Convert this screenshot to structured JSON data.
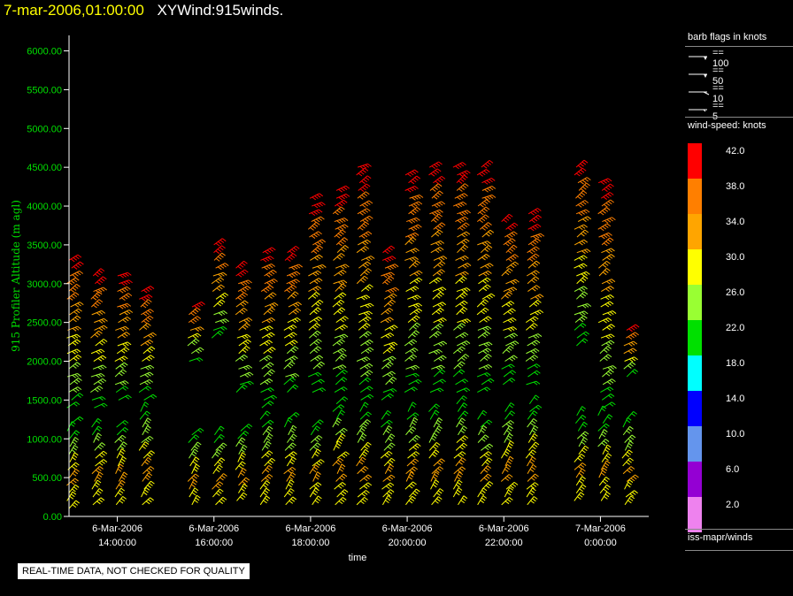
{
  "title": {
    "datetime": "7-mar-2006,01:00:00",
    "name": "XYWind:915winds."
  },
  "quality_note": "REAL-TIME DATA, NOT CHECKED FOR QUALITY",
  "legend": {
    "barb_title": "barb flags in knots",
    "barbs": [
      {
        "label": "== 100",
        "icon": "pennant-barb-icon"
      },
      {
        "label": "== 50",
        "icon": "pennant-barb-icon"
      },
      {
        "label": "== 10",
        "icon": "full-barb-icon"
      },
      {
        "label": "== 5",
        "icon": "half-barb-icon"
      }
    ],
    "colorbar_title": "wind-speed: knots",
    "colorbar": [
      {
        "label": "42.0",
        "color": "#ff0000"
      },
      {
        "label": "38.0",
        "color": "#ff7f00"
      },
      {
        "label": "34.0",
        "color": "#ffa500"
      },
      {
        "label": "30.0",
        "color": "#ffff00"
      },
      {
        "label": "26.0",
        "color": "#99ff33"
      },
      {
        "label": "22.0",
        "color": "#00e000"
      },
      {
        "label": "18.0",
        "color": "#00ffff"
      },
      {
        "label": "14.0",
        "color": "#0000ff"
      },
      {
        "label": "10.0",
        "color": "#6495ed"
      },
      {
        "label": "6.0",
        "color": "#9400d3"
      },
      {
        "label": "2.0",
        "color": "#ee82ee"
      }
    ],
    "source": "iss-mapr/winds"
  },
  "chart_data": {
    "type": "scatter",
    "subtype": "wind-barb time-height profile",
    "title": "XYWind:915winds.",
    "xlabel": "time",
    "ylabel": "915 Profiler Altitude (m agl)",
    "ylim": [
      0,
      6200
    ],
    "yticks": [
      0,
      500,
      1000,
      1500,
      2000,
      2500,
      3000,
      3500,
      4000,
      4500,
      5000,
      5500,
      6000
    ],
    "ytick_labels": [
      "0.00",
      "500.00",
      "1000.00",
      "1500.00",
      "2000.00",
      "2500.00",
      "3000.00",
      "3500.00",
      "4000.00",
      "4500.00",
      "5000.00",
      "5500.00",
      "6000.00"
    ],
    "xlim": [
      "2006-03-06T13:00",
      "2006-03-07T01:00"
    ],
    "xticks": [
      {
        "time": "2006-03-06T14:00",
        "date": "6-Mar-2006",
        "clock": "14:00:00"
      },
      {
        "time": "2006-03-06T16:00",
        "date": "6-Mar-2006",
        "clock": "16:00:00"
      },
      {
        "time": "2006-03-06T18:00",
        "date": "6-Mar-2006",
        "clock": "18:00:00"
      },
      {
        "time": "2006-03-06T20:00",
        "date": "6-Mar-2006",
        "clock": "20:00:00"
      },
      {
        "time": "2006-03-06T22:00",
        "date": "6-Mar-2006",
        "clock": "22:00:00"
      },
      {
        "time": "2006-03-07T00:00",
        "date": "7-Mar-2006",
        "clock": "0:00:00"
      }
    ],
    "profiles": [
      {
        "time": "2006-03-06T13:00",
        "low": [
          100,
          1200
        ],
        "high": [
          1400,
          3300
        ]
      },
      {
        "time": "2006-03-06T13:30",
        "low": [
          150,
          1200
        ],
        "high": [
          1400,
          3150
        ]
      },
      {
        "time": "2006-03-06T14:00",
        "low": [
          150,
          1150
        ],
        "high": [
          1500,
          3100
        ]
      },
      {
        "time": "2006-03-06T14:30",
        "low": [
          150,
          1400
        ],
        "high": [
          1500,
          2900
        ]
      },
      {
        "time": "2006-03-06T15:30",
        "low": [
          150,
          1100
        ],
        "high": [
          2000,
          2700
        ]
      },
      {
        "time": "2006-03-06T16:00",
        "low": [
          150,
          1050
        ],
        "high": [
          2300,
          3500
        ]
      },
      {
        "time": "2006-03-06T16:30",
        "low": [
          200,
          1100
        ],
        "high": [
          1600,
          3200
        ]
      },
      {
        "time": "2006-03-06T17:00",
        "low": [
          150,
          1300
        ],
        "high": [
          1400,
          3450
        ]
      },
      {
        "time": "2006-03-06T17:30",
        "low": [
          150,
          1300
        ],
        "high": [
          1600,
          3450
        ]
      },
      {
        "time": "2006-03-06T18:00",
        "low": [
          150,
          1200
        ],
        "high": [
          1600,
          4150
        ]
      },
      {
        "time": "2006-03-06T18:30",
        "low": [
          150,
          1500
        ],
        "high": [
          1600,
          4200
        ]
      },
      {
        "time": "2006-03-06T19:00",
        "low": [
          150,
          1400
        ],
        "high": [
          1500,
          4500
        ]
      },
      {
        "time": "2006-03-06T19:30",
        "low": [
          150,
          1300
        ],
        "high": [
          1500,
          3450
        ]
      },
      {
        "time": "2006-03-06T20:00",
        "low": [
          150,
          1400
        ],
        "high": [
          1600,
          4450
        ]
      },
      {
        "time": "2006-03-06T20:30",
        "low": [
          150,
          1400
        ],
        "high": [
          1600,
          4500
        ]
      },
      {
        "time": "2006-03-06T21:00",
        "low": [
          150,
          1500
        ],
        "high": [
          1600,
          4550
        ]
      },
      {
        "time": "2006-03-06T21:30",
        "low": [
          150,
          1300
        ],
        "high": [
          1600,
          4500
        ]
      },
      {
        "time": "2006-03-06T22:00",
        "low": [
          150,
          1400
        ],
        "high": [
          1700,
          3850
        ]
      },
      {
        "time": "2006-03-06T22:30",
        "low": [
          150,
          1500
        ],
        "high": [
          1700,
          3900
        ]
      },
      {
        "time": "2006-03-06T23:30",
        "low": [
          200,
          1300
        ],
        "high": [
          2200,
          4550
        ]
      },
      {
        "time": "2006-03-07T00:00",
        "low": [
          200,
          1300
        ],
        "high": [
          1400,
          4300
        ]
      },
      {
        "time": "2006-03-07T00:30",
        "low": [
          150,
          1300
        ],
        "high": [
          1800,
          2400
        ]
      }
    ]
  }
}
